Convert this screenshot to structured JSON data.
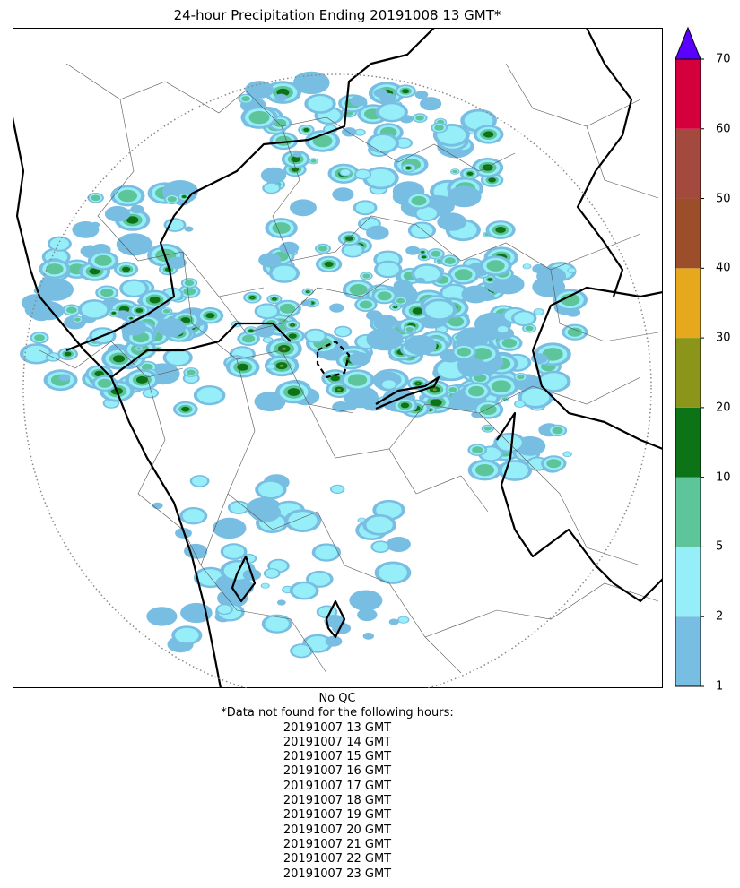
{
  "title": "24-hour Precipitation Ending 20191008 13 GMT*",
  "colorbar": {
    "ticks": [
      "1",
      "2",
      "5",
      "10",
      "20",
      "30",
      "40",
      "50",
      "60",
      "70"
    ],
    "bins": [
      {
        "from": 1,
        "to": 2,
        "color": "#78bde2"
      },
      {
        "from": 2,
        "to": 5,
        "color": "#96eef9"
      },
      {
        "from": 5,
        "to": 10,
        "color": "#5dc599"
      },
      {
        "from": 10,
        "to": 20,
        "color": "#0d7317"
      },
      {
        "from": 20,
        "to": 30,
        "color": "#8a9519"
      },
      {
        "from": 30,
        "to": 40,
        "color": "#e6a91d"
      },
      {
        "from": 40,
        "to": 50,
        "color": "#9c4e2a"
      },
      {
        "from": 50,
        "to": 60,
        "color": "#a3493e"
      },
      {
        "from": 60,
        "to": 70,
        "color": "#d4003e"
      }
    ],
    "over_color": "#5a00ff"
  },
  "notes": {
    "qc": "No QC",
    "missing_header": "*Data not found for the following hours:",
    "missing_hours": [
      "20191007 13 GMT",
      "20191007 14 GMT",
      "20191007 15 GMT",
      "20191007 16 GMT",
      "20191007 17 GMT",
      "20191007 18 GMT",
      "20191007 19 GMT",
      "20191007 20 GMT",
      "20191007 21 GMT",
      "20191007 22 GMT",
      "20191007 23 GMT"
    ]
  }
}
